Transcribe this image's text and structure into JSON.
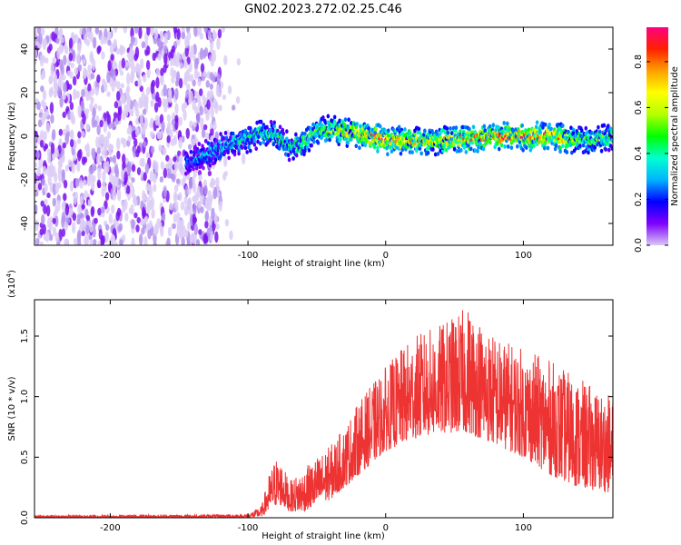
{
  "title": "GN02.2023.272.02.25.C46",
  "chart_data": [
    {
      "type": "heatmap",
      "xlabel": "Height of straight line (km)",
      "ylabel": "Frequency (Hz)",
      "xlim": [
        -255,
        165
      ],
      "ylim": [
        -50,
        50
      ],
      "x_ticks": [
        -200,
        -100,
        0,
        100
      ],
      "y_ticks": [
        -40,
        -20,
        0,
        20,
        40
      ],
      "colorbar": {
        "label": "Normalized spectral amplitude",
        "range": [
          0,
          0.95
        ],
        "ticks": [
          0.0,
          0.2,
          0.4,
          0.6,
          0.8
        ],
        "colormap": [
          "#d9c8f4",
          "#7f00ff",
          "#0000ff",
          "#00b4ff",
          "#00ffd0",
          "#00ff00",
          "#b4ff00",
          "#ffff00",
          "#ffa000",
          "#ff2000",
          "#ff0080"
        ]
      },
      "ridge": {
        "x": [
          -145,
          -130,
          -115,
          -100,
          -90,
          -80,
          -70,
          -60,
          -50,
          -40,
          -30,
          -20,
          -10,
          0,
          20,
          40,
          60,
          80,
          100,
          120,
          140,
          165
        ],
        "freq": [
          -12,
          -8,
          -4,
          -1,
          1,
          0,
          -5,
          -3,
          2,
          3,
          2,
          1,
          0,
          -2,
          -2,
          -2,
          -1,
          0,
          0,
          0,
          -2,
          -1
        ],
        "amplitude": [
          0.3,
          0.35,
          0.4,
          0.45,
          0.5,
          0.5,
          0.45,
          0.55,
          0.6,
          0.65,
          0.7,
          0.8,
          0.9,
          0.85,
          0.75,
          0.7,
          0.8,
          0.9,
          0.9,
          0.85,
          0.6,
          0.5
        ]
      },
      "noise_region_x": [
        -255,
        -120
      ]
    },
    {
      "type": "line",
      "xlabel": "Height of straight line (km)",
      "ylabel": "SNR (10 * v/v)",
      "y_multiplier": "(x10^4)",
      "xlim": [
        -255,
        165
      ],
      "ylim": [
        0,
        1.8
      ],
      "x_ticks": [
        -200,
        -100,
        0,
        100
      ],
      "y_ticks": [
        0.0,
        0.5,
        1.0,
        1.5
      ],
      "y_tick_labels": [
        "0.0",
        "0.5",
        "1.0",
        "1.5"
      ],
      "series": [
        {
          "color": "#ee3333",
          "envelope_x": [
            -255,
            -100,
            -90,
            -85,
            -80,
            -75,
            -70,
            -60,
            -50,
            -40,
            -30,
            -20,
            -10,
            0,
            20,
            40,
            60,
            80,
            100,
            120,
            140,
            165
          ],
          "envelope_lo": [
            0.0,
            0.0,
            0.01,
            0.05,
            0.1,
            0.1,
            0.05,
            0.05,
            0.1,
            0.15,
            0.25,
            0.35,
            0.45,
            0.55,
            0.65,
            0.7,
            0.7,
            0.6,
            0.5,
            0.35,
            0.25,
            0.2
          ],
          "envelope_hi": [
            0.02,
            0.03,
            0.1,
            0.35,
            0.5,
            0.45,
            0.3,
            0.4,
            0.5,
            0.6,
            0.75,
            0.95,
            1.1,
            1.25,
            1.5,
            1.6,
            1.75,
            1.5,
            1.4,
            1.3,
            1.15,
            1.0
          ]
        }
      ]
    }
  ]
}
